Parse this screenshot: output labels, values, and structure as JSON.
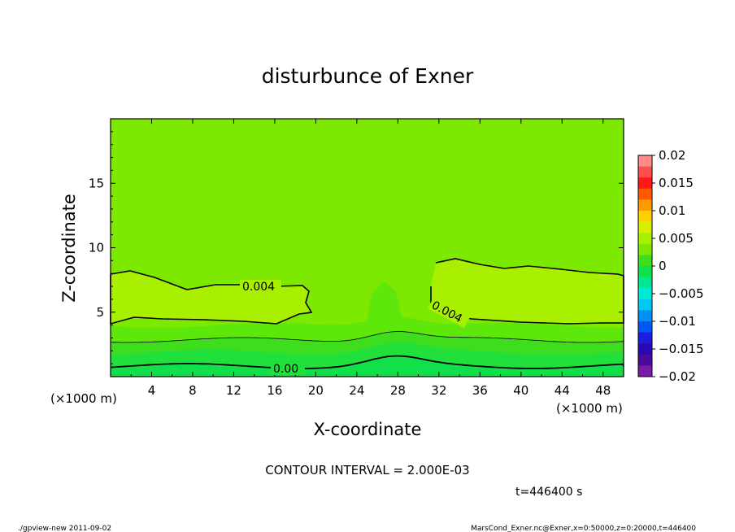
{
  "chart_data": {
    "type": "contour",
    "title": "disturbunce of Exner",
    "xlabel": "X-coordinate",
    "ylabel": "Z-coordinate",
    "x_unit": "(×1000 m)",
    "y_unit": "(×1000 m)",
    "xlim": [
      0,
      50
    ],
    "ylim": [
      0,
      20
    ],
    "x_ticks": [
      4,
      8,
      12,
      16,
      20,
      24,
      28,
      32,
      36,
      40,
      44,
      48
    ],
    "y_ticks": [
      5,
      10,
      15
    ],
    "contour_interval_text": "CONTOUR INTERVAL = 2.000E-03",
    "contour_labels": [
      "0.004",
      "0.004",
      "0.00"
    ],
    "colorbar": {
      "levels": [
        -0.02,
        -0.015,
        -0.01,
        -0.005,
        0,
        0.005,
        0.01,
        0.015,
        0.02
      ],
      "tick_labels": [
        "0.02",
        "0.015",
        "0.01",
        "0.005",
        "0",
        "−0.005",
        "−0.01",
        "−0.015",
        "−0.02"
      ],
      "bands_top_to_bottom": [
        "#ff8a8a",
        "#ff4e4e",
        "#ff1a1a",
        "#ff5a00",
        "#ff9a00",
        "#ffd000",
        "#d8f000",
        "#a8ef00",
        "#7de800",
        "#3ede1e",
        "#12e04a",
        "#00e890",
        "#00e8d6",
        "#00c8f0",
        "#0090f4",
        "#0058f0",
        "#1d1de0",
        "#2a08b8",
        "#4a0a9a",
        "#7a1aa8"
      ]
    },
    "field_colors": {
      "upper_background": "#7de800",
      "plateau": "#a8ef00",
      "band_1": "#5ee70a",
      "band_2": "#3ede1e",
      "band_3": "#22e03c",
      "bottom": "#12e04a"
    }
  },
  "footer": {
    "time_text": "t=446400 s",
    "program_text": "./gpview-new  2011-09-02",
    "source_text": "MarsCond_Exner.nc@Exner,x=0:50000,z=0:20000,t=446400"
  }
}
